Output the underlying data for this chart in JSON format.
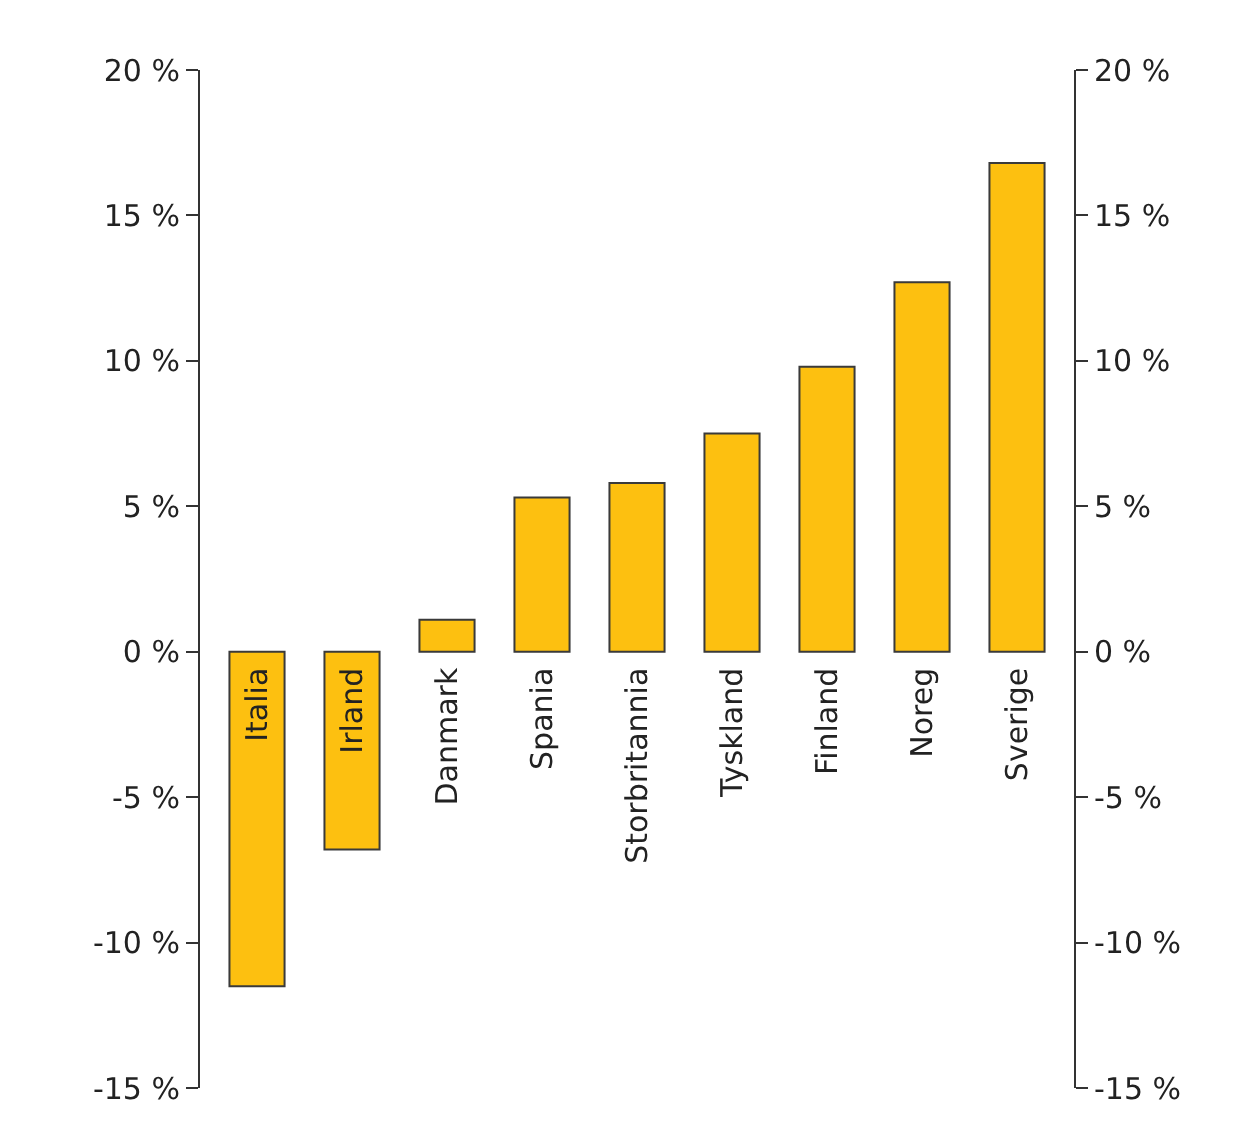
{
  "chart_data": {
    "type": "bar",
    "categories": [
      "Italia",
      "Irland",
      "Danmark",
      "Spania",
      "Storbritannia",
      "Tyskland",
      "Finland",
      "Noreg",
      "Sverige"
    ],
    "values": [
      -11.5,
      -6.8,
      1.1,
      5.3,
      5.8,
      7.5,
      9.8,
      12.7,
      16.8
    ],
    "color": "#fdc010",
    "ylim": [
      -15,
      20
    ],
    "yticks": [
      {
        "value": -15,
        "label": "-15 %"
      },
      {
        "value": -10,
        "label": "-10 %"
      },
      {
        "value": -5,
        "label": "-5 %"
      },
      {
        "value": 0,
        "label": "0 %"
      },
      {
        "value": 5,
        "label": "5 %"
      },
      {
        "value": 10,
        "label": "10 %"
      },
      {
        "value": 15,
        "label": "15 %"
      },
      {
        "value": 20,
        "label": "20 %"
      }
    ],
    "y2lim": [
      -15,
      20
    ],
    "y2ticks": [
      {
        "value": -15,
        "label": "-15 %"
      },
      {
        "value": -10,
        "label": "-10 %"
      },
      {
        "value": -5,
        "label": "-5 %"
      },
      {
        "value": 0,
        "label": "0 %"
      },
      {
        "value": 5,
        "label": "5 %"
      },
      {
        "value": 10,
        "label": "10 %"
      },
      {
        "value": 15,
        "label": "15 %"
      },
      {
        "value": 20,
        "label": "20 %"
      }
    ]
  }
}
